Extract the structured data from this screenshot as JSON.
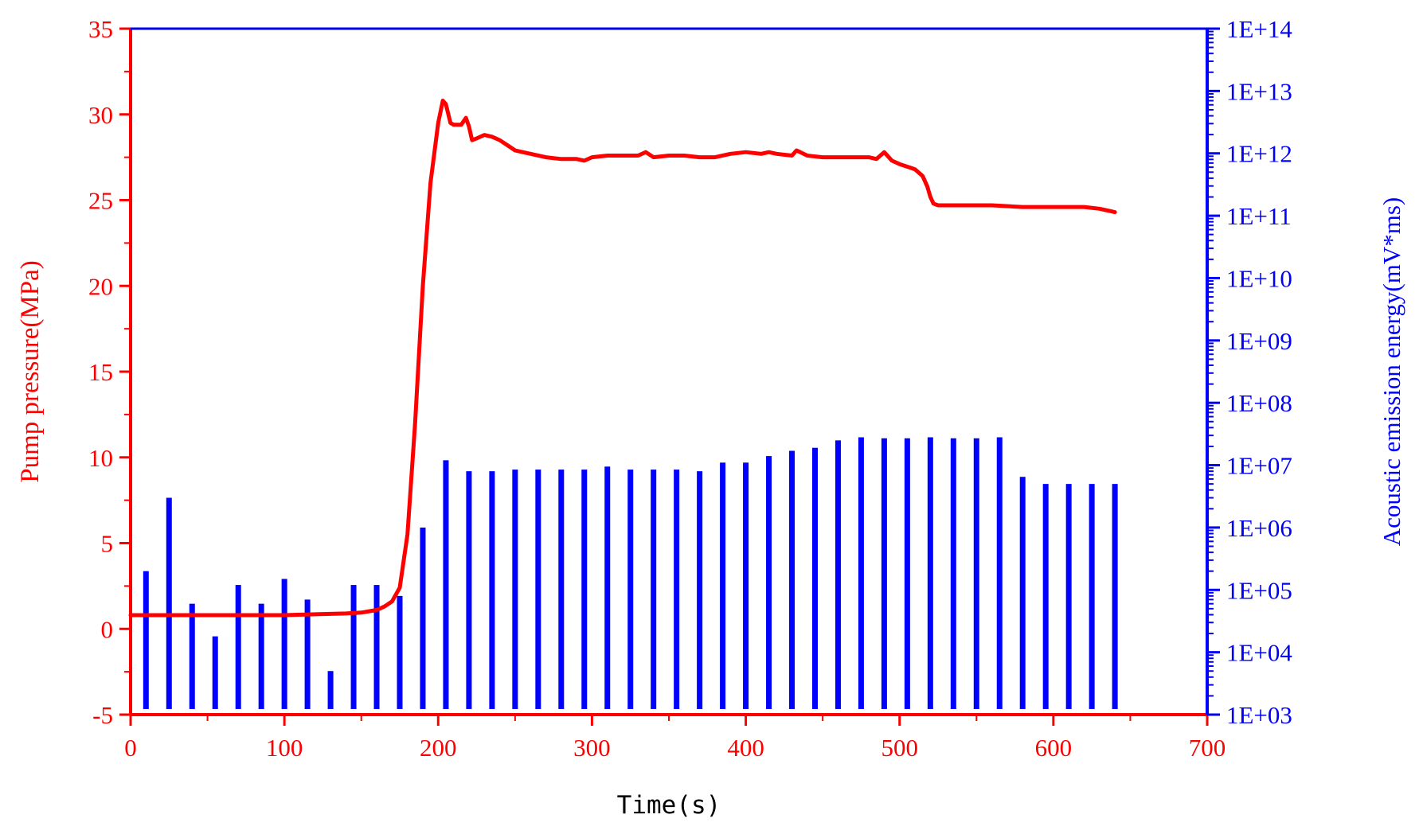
{
  "chart_data": {
    "type": "bar",
    "title": "",
    "xlabel": "Time(s)",
    "ylabel_left": "Pump pressure(MPa)",
    "ylabel_right": "Acoustic emission energy(mV*ms)",
    "xlim": [
      0,
      700
    ],
    "ylim_left": [
      -5,
      35
    ],
    "ylim_right": [
      1000,
      100000000000000.0
    ],
    "right_axis_scale": "log",
    "x_ticks": [
      "0",
      "100",
      "200",
      "300",
      "400",
      "500",
      "600",
      "700"
    ],
    "y_left_ticks": [
      "-5",
      "0",
      "5",
      "10",
      "15",
      "20",
      "25",
      "30",
      "35"
    ],
    "y_right_ticks": [
      "1E+03",
      "1E+04",
      "1E+05",
      "1E+06",
      "1E+07",
      "1E+08",
      "1E+09",
      "1E+10",
      "1E+11",
      "1E+12",
      "1E+13",
      "1E+14"
    ],
    "colors": {
      "left_axis": "#ff0000",
      "right_axis": "#0000ff",
      "pressure_line": "#ff0000",
      "energy_bars": "#0000ff"
    },
    "grid": false,
    "series": [
      {
        "type": "line",
        "axis": "left",
        "x": [
          0,
          20,
          40,
          60,
          80,
          100,
          120,
          140,
          150,
          160,
          165,
          170,
          175,
          180,
          185,
          190,
          195,
          200,
          203,
          205,
          208,
          210,
          215,
          218,
          220,
          222,
          225,
          230,
          235,
          240,
          245,
          250,
          255,
          260,
          270,
          280,
          290,
          295,
          300,
          310,
          320,
          330,
          335,
          340,
          350,
          355,
          360,
          370,
          380,
          390,
          400,
          410,
          415,
          420,
          430,
          433,
          440,
          450,
          460,
          470,
          480,
          485,
          490,
          495,
          500,
          510,
          515,
          518,
          520,
          522,
          525,
          530,
          540,
          560,
          580,
          600,
          620,
          630,
          635,
          640
        ],
        "y": [
          0.8,
          0.8,
          0.8,
          0.8,
          0.8,
          0.8,
          0.85,
          0.9,
          0.95,
          1.1,
          1.3,
          1.6,
          2.4,
          5.5,
          12,
          20,
          26,
          29.5,
          30.8,
          30.6,
          29.5,
          29.4,
          29.4,
          29.8,
          29.3,
          28.5,
          28.6,
          28.8,
          28.7,
          28.5,
          28.2,
          27.9,
          27.8,
          27.7,
          27.5,
          27.4,
          27.4,
          27.3,
          27.5,
          27.6,
          27.6,
          27.6,
          27.8,
          27.5,
          27.6,
          27.6,
          27.6,
          27.5,
          27.5,
          27.7,
          27.8,
          27.7,
          27.8,
          27.7,
          27.6,
          27.9,
          27.6,
          27.5,
          27.5,
          27.5,
          27.5,
          27.4,
          27.8,
          27.3,
          27.1,
          26.8,
          26.4,
          25.8,
          25.2,
          24.8,
          24.7,
          24.7,
          24.7,
          24.7,
          24.6,
          24.6,
          24.6,
          24.5,
          24.4,
          24.3
        ]
      },
      {
        "type": "bar",
        "axis": "right",
        "x": [
          10,
          25,
          40,
          55,
          70,
          85,
          100,
          115,
          130,
          145,
          160,
          175,
          190,
          205,
          220,
          235,
          250,
          265,
          280,
          295,
          310,
          325,
          340,
          355,
          370,
          385,
          400,
          415,
          430,
          445,
          460,
          475,
          490,
          505,
          520,
          535,
          550,
          565,
          580,
          595,
          610,
          625,
          640
        ],
        "values": [
          200000,
          3000000,
          60000,
          18000,
          120000,
          60000,
          150000,
          70000,
          5000,
          120000,
          120000,
          80000,
          1000000,
          12000000,
          8000000,
          8000000,
          8500000,
          8500000,
          8500000,
          8500000,
          9500000,
          8500000,
          8500000,
          8500000,
          8000000,
          11000000,
          11000000,
          14000000,
          17000000,
          19000000,
          25000000,
          28000000,
          27000000,
          27000000,
          28000000,
          27000000,
          27000000,
          28000000,
          6500000,
          5000000,
          5000000,
          5000000,
          5000000
        ]
      }
    ]
  }
}
